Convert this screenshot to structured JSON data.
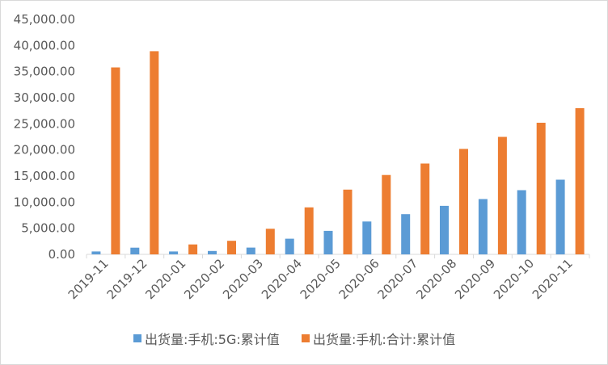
{
  "chart_data": {
    "type": "bar",
    "title": "",
    "xlabel": "",
    "ylabel": "",
    "categories": [
      "2019-11",
      "2019-12",
      "2020-01",
      "2020-02",
      "2020-03",
      "2020-04",
      "2020-05",
      "2020-06",
      "2020-07",
      "2020-08",
      "2020-09",
      "2020-10",
      "2020-11"
    ],
    "series": [
      {
        "name": "出货量:手机:5G:累计值",
        "color": "#5b9bd5",
        "values": [
          550,
          1280,
          550,
          650,
          1300,
          3000,
          4500,
          6300,
          7700,
          9300,
          10600,
          12300,
          14300
        ]
      },
      {
        "name": "出货量:手机:合计:累计值",
        "color": "#ed7d31",
        "values": [
          35800,
          38900,
          1900,
          2600,
          4900,
          9000,
          12400,
          15200,
          17400,
          20200,
          22500,
          25200,
          28000
        ]
      }
    ],
    "ylim": [
      0,
      45000
    ],
    "ytick_step": 5000,
    "yticks": [
      "0.00",
      "5,000.00",
      "10,000.00",
      "15,000.00",
      "20,000.00",
      "25,000.00",
      "30,000.00",
      "35,000.00",
      "40,000.00",
      "45,000.00"
    ],
    "grid": false,
    "legend_position": "bottom"
  }
}
